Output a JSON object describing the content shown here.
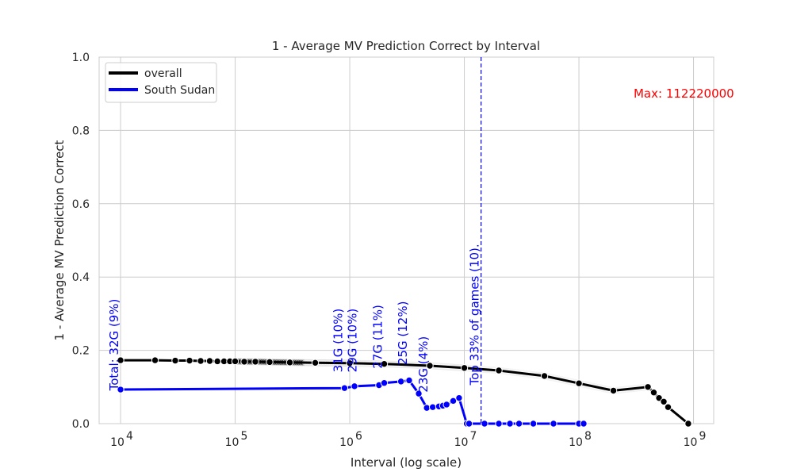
{
  "chart_data": {
    "type": "line",
    "title": "1 - Average MV Prediction Correct by Interval",
    "xlabel": "Interval (log scale)",
    "ylabel": "1 - Average MV Prediction Correct",
    "xscale": "log",
    "xlim": [
      6500,
      1500000000
    ],
    "ylim": [
      0,
      1.0
    ],
    "yticks": [
      0.0,
      0.2,
      0.4,
      0.6,
      0.8,
      1.0
    ],
    "ytick_labels": [
      "0.0",
      "0.2",
      "0.4",
      "0.6",
      "0.8",
      "1.0"
    ],
    "xticks": [
      10000,
      100000,
      1000000,
      10000000,
      100000000,
      1000000000
    ],
    "xtick_labels": [
      {
        "base": "10",
        "exp": "4"
      },
      {
        "base": "10",
        "exp": "5"
      },
      {
        "base": "10",
        "exp": "6"
      },
      {
        "base": "10",
        "exp": "7"
      },
      {
        "base": "10",
        "exp": "8"
      },
      {
        "base": "10",
        "exp": "9"
      }
    ],
    "grid": true,
    "legend_position": "top-left",
    "series": [
      {
        "name": "overall",
        "color": "#000000",
        "x": [
          10000,
          20000,
          30000,
          40000,
          50000,
          60000,
          70000,
          80000,
          90000,
          100000,
          120000,
          150000,
          200000,
          300000,
          500000,
          1000000,
          2000000,
          5000000,
          10000000,
          20000000,
          50000000,
          100000000,
          200000000,
          400000000,
          450000000,
          500000000,
          550000000,
          600000000,
          900000000
        ],
        "y": [
          0.173,
          0.173,
          0.172,
          0.172,
          0.171,
          0.171,
          0.17,
          0.17,
          0.17,
          0.17,
          0.169,
          0.169,
          0.168,
          0.167,
          0.166,
          0.165,
          0.163,
          0.158,
          0.152,
          0.145,
          0.13,
          0.11,
          0.09,
          0.1,
          0.085,
          0.07,
          0.06,
          0.045,
          0.0
        ]
      },
      {
        "name": "South Sudan",
        "color": "#0000ff",
        "x": [
          10000,
          900000,
          1100000,
          1800000,
          2000000,
          2800000,
          3300000,
          4000000,
          4700000,
          5300000,
          6000000,
          6500000,
          7000000,
          8000000,
          9000000,
          10500000,
          11000000,
          15000000,
          20000000,
          25000000,
          30000000,
          40000000,
          60000000,
          100000000,
          110000000
        ],
        "y": [
          0.093,
          0.097,
          0.102,
          0.105,
          0.111,
          0.115,
          0.118,
          0.082,
          0.043,
          0.045,
          0.047,
          0.049,
          0.052,
          0.062,
          0.07,
          0.0,
          0.0,
          0.0,
          0.0,
          0.0,
          0.0,
          0.0,
          0.0,
          0.0,
          0.0
        ]
      }
    ],
    "vline": {
      "x": 14000000,
      "color": "#0000ff",
      "style": "dashed"
    },
    "annotations": [
      {
        "text": "Total: 32G (9%)",
        "x": 10000,
        "y": 0.09,
        "color": "#0000ff",
        "rotation": 90
      },
      {
        "text": "31G (10%)",
        "x": 900000,
        "y": 0.14,
        "color": "#0000ff",
        "rotation": 90
      },
      {
        "text": "29G (10%)",
        "x": 1200000,
        "y": 0.14,
        "color": "#0000ff",
        "rotation": 90
      },
      {
        "text": "27G (11%)",
        "x": 2000000,
        "y": 0.15,
        "color": "#0000ff",
        "rotation": 90
      },
      {
        "text": "25G (12%)",
        "x": 3300000,
        "y": 0.16,
        "color": "#0000ff",
        "rotation": 90
      },
      {
        "text": "23G (4%)",
        "x": 5000000,
        "y": 0.085,
        "color": "#0000ff",
        "rotation": 90
      },
      {
        "text": "Top 33% of games (10).",
        "x": 14000000,
        "y": 0.105,
        "color": "#0000ff",
        "rotation": 90
      },
      {
        "text": "Max: 112220000",
        "x": 300000000,
        "y": 0.9,
        "color": "#ff0000",
        "rotation": 0
      }
    ]
  }
}
